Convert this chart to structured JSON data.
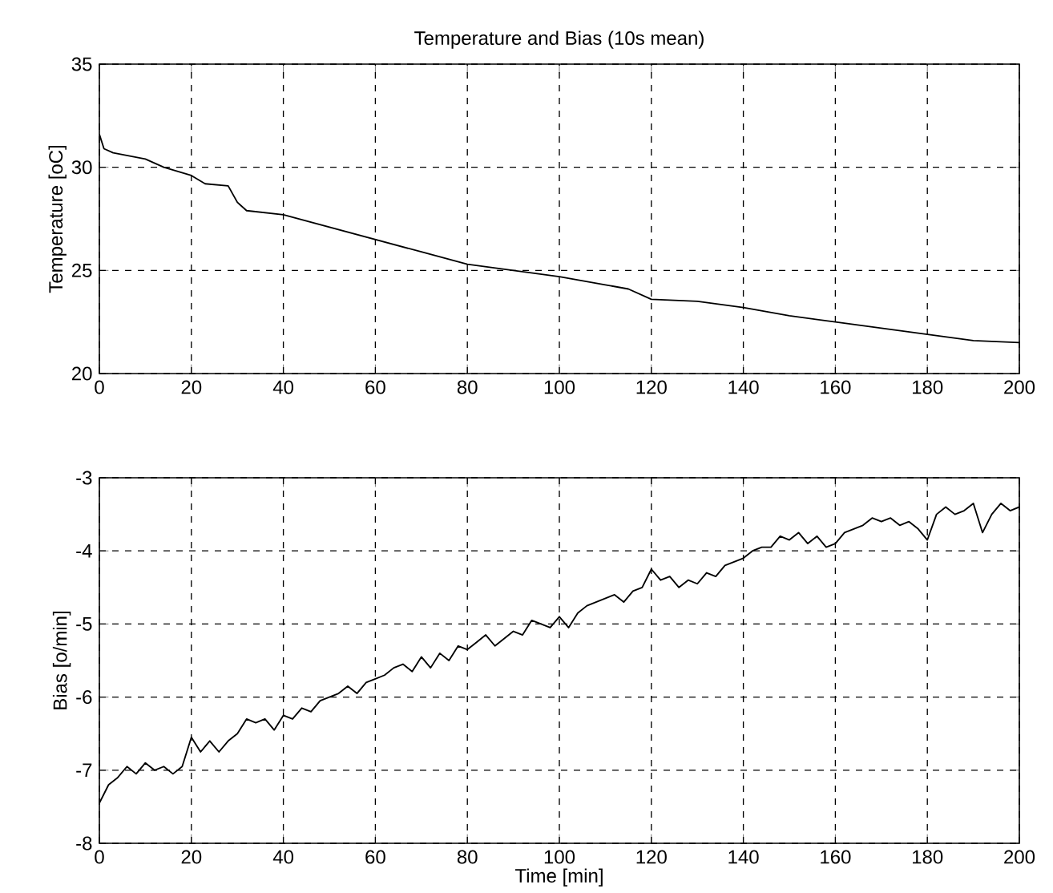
{
  "chart_data": [
    {
      "type": "line",
      "title": "Temperature and Bias (10s mean)",
      "ylabel": "Temperature [oC]",
      "x": [
        0,
        1,
        3,
        10,
        14,
        20,
        23,
        28,
        30,
        32,
        40,
        60,
        70,
        80,
        90,
        100,
        110,
        115,
        120,
        130,
        140,
        150,
        160,
        170,
        180,
        190,
        200
      ],
      "series": [
        {
          "color": "#000000",
          "values": [
            31.6,
            30.9,
            30.7,
            30.4,
            30.0,
            29.6,
            29.2,
            29.1,
            28.3,
            27.9,
            27.7,
            26.5,
            25.9,
            25.3,
            25.0,
            24.7,
            24.3,
            24.1,
            23.6,
            23.5,
            23.2,
            22.8,
            22.5,
            22.2,
            21.9,
            21.6,
            21.5
          ]
        }
      ],
      "xlim": [
        0,
        200
      ],
      "ylim": [
        20,
        35
      ],
      "xticks": [
        0,
        20,
        40,
        60,
        80,
        100,
        120,
        140,
        160,
        180,
        200
      ],
      "yticks": [
        20,
        25,
        30,
        35
      ],
      "grid": true
    },
    {
      "type": "line",
      "xlabel": "Time [min]",
      "ylabel": "Bias [o/min]",
      "x": [
        0,
        2,
        4,
        6,
        8,
        10,
        12,
        14,
        16,
        18,
        20,
        22,
        24,
        26,
        28,
        30,
        32,
        34,
        36,
        38,
        40,
        42,
        44,
        46,
        48,
        50,
        52,
        54,
        56,
        58,
        60,
        62,
        64,
        66,
        68,
        70,
        72,
        74,
        76,
        78,
        80,
        82,
        84,
        86,
        88,
        90,
        92,
        94,
        96,
        98,
        100,
        102,
        104,
        106,
        108,
        110,
        112,
        114,
        116,
        118,
        120,
        122,
        124,
        126,
        128,
        130,
        132,
        134,
        136,
        138,
        140,
        142,
        144,
        146,
        148,
        150,
        152,
        154,
        156,
        158,
        160,
        162,
        164,
        166,
        168,
        170,
        172,
        174,
        176,
        178,
        180,
        182,
        184,
        186,
        188,
        190,
        192,
        194,
        196,
        198,
        200
      ],
      "series": [
        {
          "color": "#000000",
          "values": [
            -7.45,
            -7.2,
            -7.1,
            -6.95,
            -7.05,
            -6.9,
            -7.0,
            -6.95,
            -7.05,
            -6.95,
            -6.55,
            -6.75,
            -6.6,
            -6.75,
            -6.6,
            -6.5,
            -6.3,
            -6.35,
            -6.3,
            -6.45,
            -6.25,
            -6.3,
            -6.15,
            -6.2,
            -6.05,
            -6.0,
            -5.95,
            -5.85,
            -5.95,
            -5.8,
            -5.75,
            -5.7,
            -5.6,
            -5.55,
            -5.65,
            -5.45,
            -5.6,
            -5.4,
            -5.5,
            -5.3,
            -5.35,
            -5.25,
            -5.15,
            -5.3,
            -5.2,
            -5.1,
            -5.15,
            -4.95,
            -5.0,
            -5.05,
            -4.9,
            -5.05,
            -4.85,
            -4.75,
            -4.7,
            -4.65,
            -4.6,
            -4.7,
            -4.55,
            -4.5,
            -4.25,
            -4.4,
            -4.35,
            -4.5,
            -4.4,
            -4.45,
            -4.3,
            -4.35,
            -4.2,
            -4.15,
            -4.1,
            -4.0,
            -3.95,
            -3.95,
            -3.8,
            -3.85,
            -3.75,
            -3.9,
            -3.8,
            -3.95,
            -3.9,
            -3.75,
            -3.7,
            -3.65,
            -3.55,
            -3.6,
            -3.55,
            -3.65,
            -3.6,
            -3.7,
            -3.85,
            -3.5,
            -3.4,
            -3.5,
            -3.45,
            -3.35,
            -3.75,
            -3.5,
            -3.35,
            -3.45,
            -3.4
          ]
        }
      ],
      "xlim": [
        0,
        200
      ],
      "ylim": [
        -8,
        -3
      ],
      "xticks": [
        0,
        20,
        40,
        60,
        80,
        100,
        120,
        140,
        160,
        180,
        200
      ],
      "yticks": [
        -8,
        -7,
        -6,
        -5,
        -4,
        -3
      ],
      "grid": true
    }
  ]
}
